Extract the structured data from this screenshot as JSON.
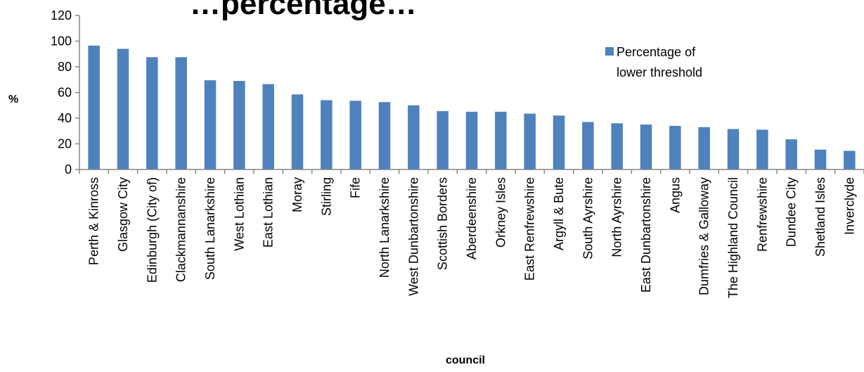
{
  "chart_data": {
    "type": "bar",
    "title": "…percentage…",
    "xlabel": "council",
    "ylabel": "%",
    "ylim": [
      0,
      120
    ],
    "yticks": [
      0,
      20,
      40,
      60,
      80,
      100,
      120
    ],
    "grid": false,
    "legend_position": "top-right",
    "bar_color": "#4F81BD",
    "categories": [
      "Perth & Kinross",
      "Glasgow City",
      "Edinburgh (City of)",
      "Clackmannanshire",
      "South Lanarkshire",
      "West Lothian",
      "East Lothian",
      "Moray",
      "Stirling",
      "Fife",
      "North Lanarkshire",
      "West Dunbartonshire",
      "Scottish Borders",
      "Aberdeenshire",
      "Orkney Isles",
      "East Renfrewshire",
      "Argyll & Bute",
      "South Ayrshire",
      "North Ayrshire",
      "East Dunbartonshire",
      "Angus",
      "Dumfries & Galloway",
      "The Highland Council",
      "Renfrewshire",
      "Dundee City",
      "Shetland Isles",
      "Inverclyde"
    ],
    "series": [
      {
        "name": "Percentage of lower threshold",
        "legend_lines": [
          "Percentage of",
          "lower threshold"
        ],
        "values": [
          96.5,
          94,
          87.5,
          87.5,
          69.5,
          69,
          66.5,
          58.5,
          54,
          53.5,
          52.5,
          50,
          45.5,
          45,
          45,
          43.5,
          42,
          37,
          36,
          35,
          34,
          33,
          31.5,
          31,
          23.5,
          15.5,
          14.5
        ]
      }
    ]
  }
}
